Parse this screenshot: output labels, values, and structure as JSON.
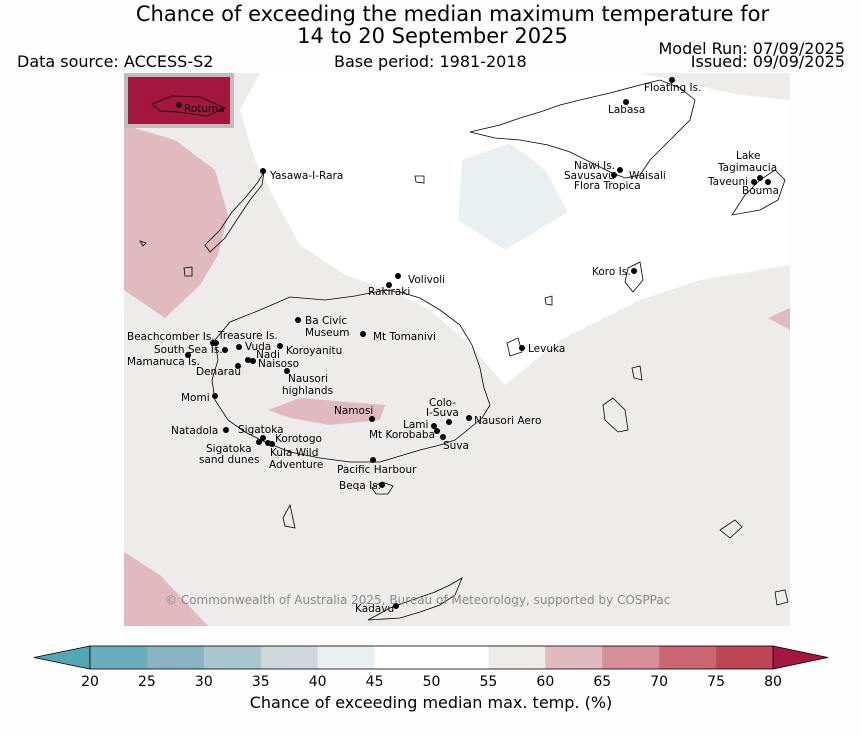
{
  "title_line1": "Chance of exceeding the median maximum temperature for",
  "title_line2": "14 to 20 September 2025",
  "data_source": "Data source: ACCESS-S2",
  "base_period": "Base period: 1981-2018",
  "model_run": "Model Run: 07/09/2025",
  "issued": "Issued: 09/09/2025",
  "copyright": "© Commonwealth of Australia 2025, Bureau of Meteorology, supported by COSPPac",
  "inset_label": "Rotuma",
  "places": [
    "Floating Is.",
    "Labasa",
    "Yasawa-I-Rara",
    "Nawi Is.",
    "Savusavu",
    "Waisali",
    "Flora Tropica",
    "Lake",
    "Tagimaucia",
    "Taveuni",
    "Bouma",
    "Koro Is.",
    "Volivoli",
    "Rakiraki",
    "Ba Civic",
    "Museum",
    "Mt Tomanivi",
    "Beachcomber Is.",
    "Treasure Is.",
    "South Sea Is.",
    "Vuda",
    "Koroyanitu",
    "Nadi",
    "Naisoso",
    "Mamanuca Is.",
    "Denarau",
    "Nausori",
    "highlands",
    "Levuka",
    "Momi",
    "Namosi",
    "Colo-",
    "I-Suva",
    "Nausori Aero",
    "Lami",
    "Mt Korobaba",
    "Suva",
    "Natadola",
    "Sigatoka",
    "Korotogo",
    "Kula Wild",
    "Adventure",
    "Sigatoka",
    "sand dunes",
    "Pacific Harbour",
    "Beqa Is.",
    "Kadavu"
  ],
  "colorbar": {
    "title": "Chance of exceeding median max. temp. (%)",
    "ticks": [
      "20",
      "25",
      "30",
      "35",
      "40",
      "45",
      "50",
      "55",
      "60",
      "65",
      "70",
      "75",
      "80"
    ],
    "colors": [
      "#6aacba",
      "#88b5c1",
      "#a8c6cc",
      "#ccd8d9",
      "#eaf0f2",
      "#ffffff",
      "#ffffff",
      "#edecea",
      "#e1bac0",
      "#d68e98",
      "#c96670",
      "#be4654"
    ],
    "under_color": "#55a6b3",
    "over_color": "#a5163e"
  },
  "regions": {
    "background_class": "50-55",
    "north_west_class": "60-65",
    "north_centre_class": "40-45",
    "namosi_class": "60-65",
    "south_west_corner_class": "60-65",
    "rotuma_class": "75-80"
  }
}
